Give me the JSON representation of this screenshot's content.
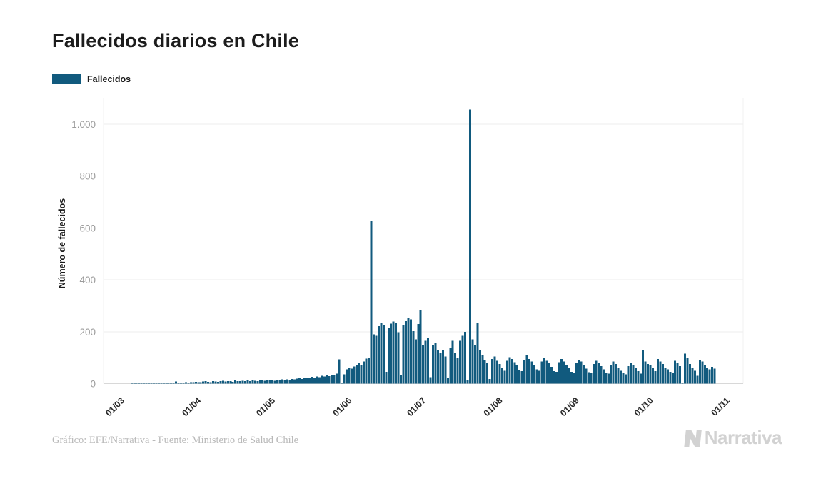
{
  "header": {
    "title": "Fallecidos diarios en Chile"
  },
  "legend": {
    "label": "Fallecidos",
    "swatch_color": "#115a7e"
  },
  "footer": {
    "credit": "Gráfico: EFE/Narrativa - Fuente: Ministerio de Salud Chile",
    "brand": "Narrativa"
  },
  "chart_data": {
    "type": "bar",
    "title": "Fallecidos diarios en Chile",
    "xlabel": "",
    "ylabel": "Número de fallecidos",
    "ylim": [
      0,
      1100
    ],
    "grid": true,
    "legend_position": "top-left",
    "bar_color": "#115a7e",
    "y_ticks": [
      0,
      200,
      400,
      600,
      800,
      1000
    ],
    "y_tick_labels": [
      "0",
      "200",
      "400",
      "600",
      "800",
      "1.000"
    ],
    "x_tick_labels": [
      "01/03",
      "01/04",
      "01/05",
      "01/06",
      "01/07",
      "01/08",
      "01/09",
      "01/10",
      "01/11"
    ],
    "x_tick_days": [
      0,
      31,
      61,
      92,
      122,
      153,
      184,
      214,
      245
    ],
    "x_domain_days": 246,
    "series": [
      {
        "name": "Fallecidos",
        "start_date": "01/03/2020",
        "frequency": "daily",
        "values": [
          0,
          0,
          0,
          0,
          0,
          1,
          1,
          1,
          1,
          1,
          1,
          1,
          1,
          1,
          1,
          1,
          1,
          1,
          1,
          1,
          2,
          1,
          2,
          8,
          3,
          4,
          3,
          5,
          4,
          6,
          5,
          7,
          5,
          6,
          8,
          9,
          7,
          6,
          10,
          8,
          7,
          9,
          11,
          8,
          10,
          9,
          7,
          12,
          10,
          9,
          11,
          10,
          12,
          9,
          13,
          11,
          10,
          14,
          12,
          11,
          13,
          12,
          14,
          11,
          15,
          13,
          16,
          14,
          17,
          15,
          18,
          16,
          19,
          21,
          18,
          22,
          20,
          24,
          26,
          23,
          28,
          25,
          30,
          27,
          32,
          29,
          35,
          31,
          38,
          93,
          2,
          36,
          55,
          60,
          58,
          66,
          72,
          78,
          70,
          85,
          96,
          100,
          627,
          190,
          185,
          222,
          232,
          226,
          45,
          215,
          231,
          240,
          235,
          198,
          35,
          224,
          241,
          254,
          247,
          202,
          170,
          230,
          283,
          150,
          165,
          178,
          25,
          148,
          155,
          130,
          118,
          130,
          105,
          20,
          138,
          165,
          120,
          98,
          165,
          185,
          200,
          15,
          1057,
          170,
          150,
          235,
          130,
          108,
          92,
          80,
          18,
          95,
          105,
          88,
          75,
          60,
          50,
          88,
          102,
          95,
          82,
          70,
          52,
          48,
          92,
          108,
          95,
          85,
          72,
          55,
          50,
          85,
          98,
          88,
          78,
          65,
          48,
          45,
          82,
          95,
          85,
          72,
          60,
          46,
          42,
          78,
          92,
          85,
          70,
          58,
          44,
          40,
          75,
          88,
          80,
          68,
          55,
          42,
          38,
          72,
          85,
          76,
          62,
          50,
          40,
          36,
          68,
          80,
          72,
          60,
          48,
          38,
          130,
          85,
          75,
          70,
          60,
          48,
          95,
          85,
          75,
          62,
          55,
          45,
          40,
          88,
          78,
          68,
          2,
          115,
          98,
          75,
          60,
          50,
          30,
          92,
          85,
          70,
          62,
          55,
          65,
          58
        ]
      }
    ],
    "notable_points": [
      {
        "approx_date": "10/06",
        "value": 627
      },
      {
        "approx_date": "18/07",
        "value": 1057
      }
    ]
  }
}
